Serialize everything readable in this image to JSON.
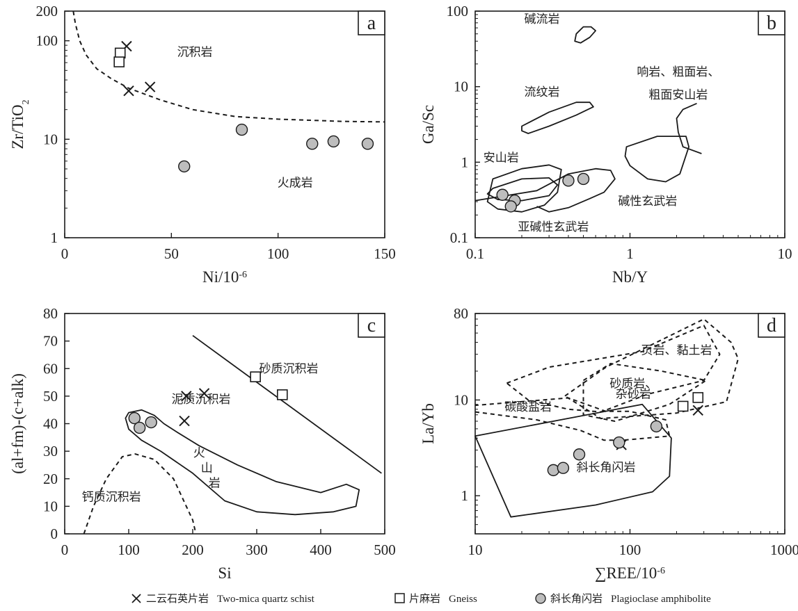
{
  "chart_data": [
    {
      "panel": "a",
      "type": "scatter",
      "xlabel": "Ni/10",
      "xlabel_sup": "-6",
      "ylabel": "Zr/TiO",
      "ylabel_sub": "2",
      "xlim": [
        0,
        150
      ],
      "ylim": [
        1,
        200
      ],
      "xscale": "linear",
      "yscale": "log",
      "xticks": [
        "0",
        "50",
        "100",
        "150"
      ],
      "yticks": [
        {
          "v": 1,
          "label": "1"
        },
        {
          "v": 10,
          "label": "10"
        },
        {
          "v": 100,
          "label": "100"
        },
        {
          "v": 200,
          "label": "200"
        }
      ],
      "region_labels": [
        {
          "text": "沉积岩",
          "x": 61,
          "y": 70
        },
        {
          "text": "火成岩",
          "x": 108,
          "y": 3.3
        }
      ],
      "boundaries": [
        {
          "style": "dashed",
          "points": [
            [
              4,
              200
            ],
            [
              5,
              150
            ],
            [
              7,
              100
            ],
            [
              10,
              72
            ],
            [
              15,
              52
            ],
            [
              22,
              41
            ],
            [
              30,
              33
            ],
            [
              45,
              25
            ],
            [
              60,
              20
            ],
            [
              80,
              17
            ],
            [
              100,
              16
            ],
            [
              130,
              15.2
            ],
            [
              150,
              15
            ]
          ]
        }
      ],
      "series": [
        {
          "name": "二云石英片岩 Two-mica quartz schist",
          "marker": "x",
          "points": [
            [
              29,
              88
            ],
            [
              30,
              31
            ],
            [
              40,
              34
            ]
          ]
        },
        {
          "name": "片麻岩 Gneiss",
          "marker": "square",
          "points": [
            [
              26,
              75
            ],
            [
              25.5,
              61
            ]
          ]
        },
        {
          "name": "斜长角闪岩 Plagioclase amphibolite",
          "marker": "circle",
          "points": [
            [
              56,
              5.3
            ],
            [
              83,
              12.5
            ],
            [
              116,
              9
            ],
            [
              126,
              9.5
            ],
            [
              142,
              9
            ]
          ]
        }
      ]
    },
    {
      "panel": "b",
      "type": "scatter",
      "xlabel": "Nb/Y",
      "ylabel": "Ga/Sc",
      "xlim": [
        0.1,
        10
      ],
      "ylim": [
        0.1,
        100
      ],
      "xscale": "log",
      "yscale": "log",
      "xticks": [
        {
          "v": 0.1,
          "label": "0.1"
        },
        {
          "v": 1,
          "label": "1"
        },
        {
          "v": 10,
          "label": "10"
        }
      ],
      "yticks": [
        {
          "v": 0.1,
          "label": "0.1"
        },
        {
          "v": 1,
          "label": "1"
        },
        {
          "v": 10,
          "label": "10"
        },
        {
          "v": 100,
          "label": "100"
        }
      ],
      "region_labels": [
        {
          "text": "碱流岩",
          "x": 0.27,
          "y": 70
        },
        {
          "text": "流纹岩",
          "x": 0.27,
          "y": 7.5
        },
        {
          "text": "响岩、粗面岩、",
          "x": 2.05,
          "y": 14
        },
        {
          "text": "粗面安山岩",
          "x": 2.05,
          "y": 6.9
        },
        {
          "text": "安山岩",
          "x": 0.147,
          "y": 1.02
        },
        {
          "text": "碱性玄武岩",
          "x": 1.3,
          "y": 0.27
        },
        {
          "text": "亚碱性玄武岩",
          "x": 0.32,
          "y": 0.123
        }
      ],
      "boundaries": [
        {
          "style": "solid",
          "closed": true,
          "points": [
            [
              0.45,
              50
            ],
            [
              0.5,
              62
            ],
            [
              0.56,
              62
            ],
            [
              0.6,
              55
            ],
            [
              0.55,
              45
            ],
            [
              0.48,
              38
            ],
            [
              0.44,
              40
            ]
          ]
        },
        {
          "style": "solid",
          "closed": true,
          "points": [
            [
              0.2,
              3
            ],
            [
              0.3,
              4.6
            ],
            [
              0.45,
              6.2
            ],
            [
              0.55,
              6.2
            ],
            [
              0.58,
              5.4
            ],
            [
              0.45,
              4.2
            ],
            [
              0.3,
              3
            ],
            [
              0.22,
              2.4
            ],
            [
              0.2,
              2.6
            ]
          ]
        },
        {
          "style": "solid",
          "closed": true,
          "points": [
            [
              0.13,
              0.45
            ],
            [
              0.2,
              0.6
            ],
            [
              0.3,
              0.62
            ],
            [
              0.34,
              0.5
            ],
            [
              0.3,
              0.36
            ],
            [
              0.2,
              0.31
            ],
            [
              0.14,
              0.32
            ],
            [
              0.12,
              0.38
            ]
          ]
        },
        {
          "style": "solid",
          "closed": true,
          "points": [
            [
              0.13,
              0.6
            ],
            [
              0.2,
              0.82
            ],
            [
              0.3,
              0.92
            ],
            [
              0.36,
              0.8
            ],
            [
              0.34,
              0.4
            ],
            [
              0.28,
              0.27
            ],
            [
              0.2,
              0.22
            ],
            [
              0.14,
              0.24
            ],
            [
              0.12,
              0.3
            ]
          ]
        },
        {
          "style": "solid",
          "closed": false,
          "points": [
            [
              0.1,
              0.31
            ],
            [
              0.25,
              0.42
            ],
            [
              0.4,
              0.7
            ],
            [
              0.6,
              0.82
            ],
            [
              0.75,
              0.78
            ],
            [
              0.8,
              0.6
            ],
            [
              0.68,
              0.4
            ],
            [
              0.55,
              0.33
            ],
            [
              0.4,
              0.25
            ],
            [
              0.3,
              0.22
            ],
            [
              0.25,
              0.26
            ]
          ]
        },
        {
          "style": "solid",
          "closed": true,
          "points": [
            [
              0.95,
              1.6
            ],
            [
              1.5,
              2.2
            ],
            [
              2.3,
              2.2
            ],
            [
              2.4,
              1.6
            ],
            [
              2.1,
              0.7
            ],
            [
              1.7,
              0.55
            ],
            [
              1.3,
              0.6
            ],
            [
              1.0,
              0.9
            ],
            [
              0.93,
              1.2
            ]
          ]
        },
        {
          "style": "solid",
          "closed": false,
          "points": [
            [
              2.7,
              6
            ],
            [
              2.2,
              5
            ],
            [
              2.0,
              3.8
            ],
            [
              2.05,
              2.5
            ],
            [
              2.2,
              1.6
            ],
            [
              2.9,
              1.3
            ]
          ]
        }
      ],
      "series": [
        {
          "name": "斜长角闪岩 Plagioclase amphibolite",
          "marker": "circle",
          "points": [
            [
              0.15,
              0.37
            ],
            [
              0.18,
              0.31
            ],
            [
              0.17,
              0.26
            ],
            [
              0.4,
              0.57
            ],
            [
              0.5,
              0.6
            ]
          ]
        }
      ]
    },
    {
      "panel": "c",
      "type": "scatter",
      "xlabel": "Si",
      "ylabel": "(al+fm)-(c+alk)",
      "xlim": [
        0,
        500
      ],
      "ylim": [
        0,
        80
      ],
      "xscale": "linear",
      "yscale": "linear",
      "xticks": [
        "0",
        "100",
        "200",
        "300",
        "400",
        "500"
      ],
      "yticks": [
        "0",
        "10",
        "20",
        "30",
        "40",
        "50",
        "60",
        "70",
        "80"
      ],
      "region_labels": [
        {
          "text": "砂质沉积岩",
          "x": 350,
          "y": 58.5
        },
        {
          "text": "泥质沉积岩",
          "x": 213,
          "y": 47.5
        },
        {
          "text": "火",
          "x": 210,
          "y": 28
        },
        {
          "text": "山",
          "x": 222,
          "y": 22.5
        },
        {
          "text": "岩",
          "x": 234,
          "y": 17
        },
        {
          "text": "钙质沉积岩",
          "x": 73,
          "y": 12
        }
      ],
      "boundaries": [
        {
          "style": "solid",
          "closed": false,
          "points": [
            [
              200,
              72
            ],
            [
              495,
              22
            ]
          ]
        },
        {
          "style": "solid",
          "closed": true,
          "points": [
            [
              95,
              42
            ],
            [
              100,
              44
            ],
            [
              120,
              45
            ],
            [
              140,
              43
            ],
            [
              155,
              40
            ],
            [
              175,
              37
            ],
            [
              210,
              32
            ],
            [
              270,
              25
            ],
            [
              330,
              19
            ],
            [
              400,
              15
            ],
            [
              440,
              18
            ],
            [
              460,
              16
            ],
            [
              455,
              10
            ],
            [
              420,
              8
            ],
            [
              360,
              7
            ],
            [
              300,
              8
            ],
            [
              250,
              12
            ],
            [
              200,
              22
            ],
            [
              150,
              30
            ],
            [
              120,
              34
            ],
            [
              100,
              38
            ]
          ]
        },
        {
          "style": "dashed",
          "closed": false,
          "points": [
            [
              30,
              0
            ],
            [
              45,
              10
            ],
            [
              65,
              20
            ],
            [
              90,
              28
            ],
            [
              110,
              29
            ],
            [
              140,
              27
            ],
            [
              170,
              20
            ],
            [
              190,
              10
            ],
            [
              200,
              5
            ],
            [
              205,
              0
            ]
          ]
        }
      ],
      "series": [
        {
          "name": "二云石英片岩 Two-mica quartz schist",
          "marker": "x",
          "points": [
            [
              190,
              50
            ],
            [
              218,
              51
            ],
            [
              187,
              41
            ]
          ]
        },
        {
          "name": "片麻岩 Gneiss",
          "marker": "square",
          "points": [
            [
              298,
              57
            ],
            [
              340,
              50.5
            ]
          ]
        },
        {
          "name": "斜长角闪岩 Plagioclase amphibolite",
          "marker": "circle",
          "points": [
            [
              109,
              42
            ],
            [
              117,
              38.5
            ],
            [
              135,
              40.5
            ]
          ]
        }
      ]
    },
    {
      "panel": "d",
      "type": "scatter",
      "xlabel": "∑REE/10",
      "xlabel_sup": "-6",
      "ylabel": "La/Yb",
      "xlim": [
        10,
        1000
      ],
      "ylim": [
        0.4,
        80
      ],
      "xscale": "log",
      "yscale": "log",
      "xticks": [
        {
          "v": 10,
          "label": "10"
        },
        {
          "v": 100,
          "label": "100"
        },
        {
          "v": 1000,
          "label": "1000"
        }
      ],
      "yticks": [
        {
          "v": 1,
          "label": "1"
        },
        {
          "v": 10,
          "label": "10"
        },
        {
          "v": 80,
          "label": "80"
        }
      ],
      "region_labels": [
        {
          "text": "页岩、黏土岩",
          "x": 200,
          "y": 30
        },
        {
          "text": "砂质岩、",
          "x": 105,
          "y": 13.5
        },
        {
          "text": "杂砂岩",
          "x": 105,
          "y": 10.5
        },
        {
          "text": "碳酸盐岩",
          "x": 22,
          "y": 7.7
        },
        {
          "text": "斜长角闪岩",
          "x": 70,
          "y": 1.8
        }
      ],
      "boundaries": [
        {
          "style": "solid",
          "closed": true,
          "points": [
            [
              10,
              4.2
            ],
            [
              120,
              9
            ],
            [
              185,
              4
            ],
            [
              180,
              1.6
            ],
            [
              140,
              1.1
            ],
            [
              60,
              0.8
            ],
            [
              17,
              0.6
            ]
          ]
        },
        {
          "style": "dashed",
          "closed": true,
          "points": [
            [
              16,
              15
            ],
            [
              30,
              22
            ],
            [
              120,
              32
            ],
            [
              300,
              60
            ],
            [
              380,
              30
            ],
            [
              300,
              16
            ],
            [
              130,
              11.5
            ],
            [
              65,
              7.5
            ],
            [
              40,
              8
            ],
            [
              22,
              10
            ]
          ]
        },
        {
          "style": "dashed",
          "closed": true,
          "points": [
            [
              38,
              11
            ],
            [
              70,
              22
            ],
            [
              300,
              70
            ],
            [
              450,
              40
            ],
            [
              500,
              27
            ],
            [
              420,
              9.6
            ],
            [
              200,
              7.3
            ],
            [
              65,
              6.4
            ]
          ]
        },
        {
          "style": "dashed",
          "closed": true,
          "points": [
            [
              50,
              16
            ],
            [
              75,
              24
            ],
            [
              160,
              20
            ],
            [
              310,
              16
            ],
            [
              180,
              9
            ],
            [
              80,
              6
            ],
            [
              50,
              7
            ]
          ]
        },
        {
          "style": "dashed",
          "closed": false,
          "points": [
            [
              10,
              7.5
            ],
            [
              25,
              6.2
            ],
            [
              48,
              4.8
            ],
            [
              68,
              3.8
            ],
            [
              90,
              3.8
            ],
            [
              180,
              4.2
            ],
            [
              170,
              6.2
            ],
            [
              100,
              7.6
            ],
            [
              70,
              7.6
            ],
            [
              40,
              10.5
            ],
            [
              10,
              8.8
            ]
          ]
        }
      ],
      "series": [
        {
          "name": "二云石英片岩 Two-mica quartz schist",
          "marker": "x",
          "points": [
            [
              275,
              7.8
            ],
            [
              88,
              3.4
            ]
          ]
        },
        {
          "name": "片麻岩 Gneiss",
          "marker": "square",
          "points": [
            [
              220,
              8.6
            ],
            [
              275,
              10.6
            ]
          ]
        },
        {
          "name": "斜长角闪岩 Plagioclase amphibolite",
          "marker": "circle",
          "points": [
            [
              32,
              1.85
            ],
            [
              37,
              1.95
            ],
            [
              47,
              2.7
            ],
            [
              85,
              3.6
            ],
            [
              148,
              5.3
            ]
          ]
        }
      ]
    }
  ],
  "legend": [
    {
      "marker": "x",
      "label": "二云石英片岩",
      "en": "Two-mica quartz schist"
    },
    {
      "marker": "square",
      "label": "片麻岩",
      "en": "Gneiss"
    },
    {
      "marker": "circle",
      "label": "斜长角闪岩",
      "en": "Plagioclase amphibolite"
    }
  ],
  "colors": {
    "line": "#1a1a1a",
    "circle_fill": "#bdbdbd",
    "background": "#ffffff"
  }
}
